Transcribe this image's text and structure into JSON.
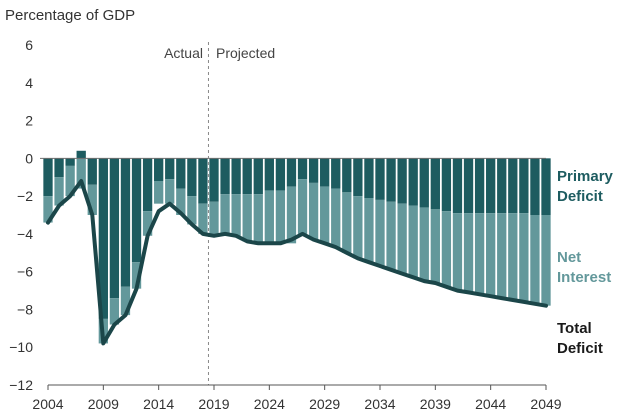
{
  "chart_data": {
    "type": "bar",
    "ylabel": "Percentage of GDP",
    "ylim": [
      -12,
      6
    ],
    "yticks": [
      6,
      4,
      2,
      0,
      -2,
      -4,
      -6,
      -8,
      -10,
      -12
    ],
    "xticks": [
      2004,
      2009,
      2014,
      2019,
      2024,
      2029,
      2034,
      2039,
      2044,
      2049
    ],
    "years": [
      2004,
      2005,
      2006,
      2007,
      2008,
      2009,
      2010,
      2011,
      2012,
      2013,
      2014,
      2015,
      2016,
      2017,
      2018,
      2019,
      2020,
      2021,
      2022,
      2023,
      2024,
      2025,
      2026,
      2027,
      2028,
      2029,
      2030,
      2031,
      2032,
      2033,
      2034,
      2035,
      2036,
      2037,
      2038,
      2039,
      2040,
      2041,
      2042,
      2043,
      2044,
      2045,
      2046,
      2047,
      2048,
      2049
    ],
    "series": [
      {
        "name": "Primary Deficit",
        "values": [
          -2.0,
          -1.0,
          -0.4,
          0.4,
          -1.4,
          -8.5,
          -7.4,
          -6.8,
          -5.5,
          -2.8,
          -1.2,
          -1.1,
          -1.6,
          -2.0,
          -2.4,
          -2.3,
          -1.9,
          -1.9,
          -1.9,
          -1.9,
          -1.7,
          -1.7,
          -1.5,
          -1.1,
          -1.3,
          -1.5,
          -1.6,
          -1.8,
          -2.0,
          -2.1,
          -2.2,
          -2.3,
          -2.4,
          -2.5,
          -2.6,
          -2.7,
          -2.8,
          -2.9,
          -2.9,
          -2.9,
          -2.9,
          -2.9,
          -2.9,
          -2.9,
          -3.0,
          -3.0
        ]
      },
      {
        "name": "Net Interest",
        "values": [
          -1.4,
          -1.5,
          -1.6,
          -1.6,
          -1.6,
          -1.3,
          -1.4,
          -1.5,
          -1.4,
          -1.3,
          -1.2,
          -1.3,
          -1.4,
          -1.5,
          -1.6,
          -1.8,
          -2.1,
          -2.2,
          -2.5,
          -2.6,
          -2.8,
          -2.8,
          -3.0,
          -2.9,
          -3.0,
          -3.0,
          -3.1,
          -3.2,
          -3.3,
          -3.4,
          -3.5,
          -3.6,
          -3.7,
          -3.8,
          -3.9,
          -3.9,
          -4.0,
          -4.1,
          -4.2,
          -4.3,
          -4.4,
          -4.5,
          -4.6,
          -4.7,
          -4.7,
          -4.8
        ]
      },
      {
        "name": "Total Deficit",
        "values": [
          -3.4,
          -2.5,
          -2.0,
          -1.2,
          -3.0,
          -9.8,
          -8.8,
          -8.3,
          -6.9,
          -4.1,
          -2.8,
          -2.4,
          -2.9,
          -3.5,
          -4.0,
          -4.1,
          -4.0,
          -4.1,
          -4.4,
          -4.5,
          -4.5,
          -4.5,
          -4.3,
          -4.0,
          -4.3,
          -4.5,
          -4.7,
          -5.0,
          -5.3,
          -5.5,
          -5.7,
          -5.9,
          -6.1,
          -6.3,
          -6.5,
          -6.6,
          -6.8,
          -7.0,
          -7.1,
          -7.2,
          -7.3,
          -7.4,
          -7.5,
          -7.6,
          -7.7,
          -7.8
        ]
      }
    ],
    "divider_between": [
      2018,
      2019
    ],
    "period_labels": {
      "actual": "Actual",
      "projected": "Projected"
    },
    "legend": {
      "primary": {
        "line1": "Primary",
        "line2": "Deficit"
      },
      "interest": {
        "line1": "Net",
        "line2": "Interest"
      },
      "total": {
        "line1": "Total",
        "line2": "Deficit"
      }
    },
    "colors": {
      "primary": "#1d5c60",
      "interest": "#63989b",
      "total_line": "#1b4649",
      "zero_line": "#6e6e6e",
      "axis": "#555555",
      "primary_label": "#1d5c60",
      "interest_label": "#63989b",
      "total_label": "#1a1a1a"
    }
  }
}
